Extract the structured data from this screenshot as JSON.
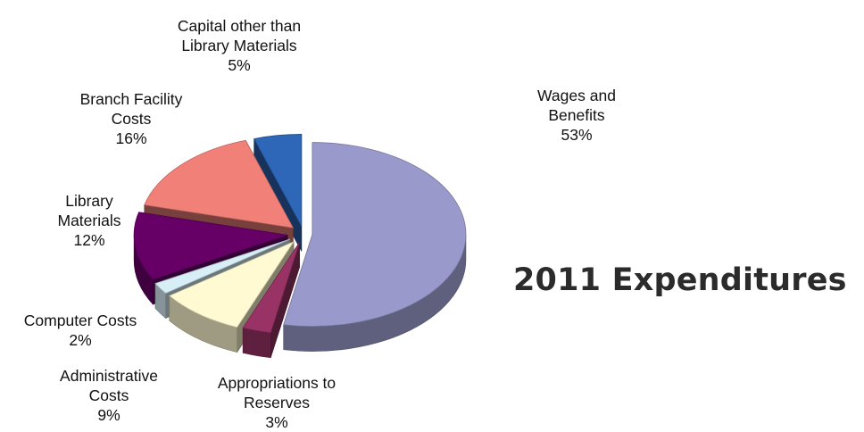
{
  "chart_data": {
    "type": "pie",
    "title": "2011 Expenditures",
    "slices": [
      {
        "label_lines": [
          "Wages and",
          "Benefits"
        ],
        "value_label": "53%",
        "value": 53,
        "color": "#9999cc"
      },
      {
        "label_lines": [
          "Appropriations to",
          "Reserves"
        ],
        "value_label": "3%",
        "value": 3,
        "color": "#993366"
      },
      {
        "label_lines": [
          "Administrative",
          "Costs"
        ],
        "value_label": "9%",
        "value": 9,
        "color": "#fffad2"
      },
      {
        "label_lines": [
          "Computer Costs"
        ],
        "value_label": "2%",
        "value": 2,
        "color": "#d8eef6"
      },
      {
        "label_lines": [
          "Library",
          "Materials"
        ],
        "value_label": "12%",
        "value": 12,
        "color": "#660066"
      },
      {
        "label_lines": [
          "Branch Facility",
          "Costs"
        ],
        "value_label": "16%",
        "value": 16,
        "color": "#f08078"
      },
      {
        "label_lines": [
          "Capital other than",
          "Library Materials"
        ],
        "value_label": "5%",
        "value": 5,
        "color": "#2e66b8"
      }
    ]
  }
}
